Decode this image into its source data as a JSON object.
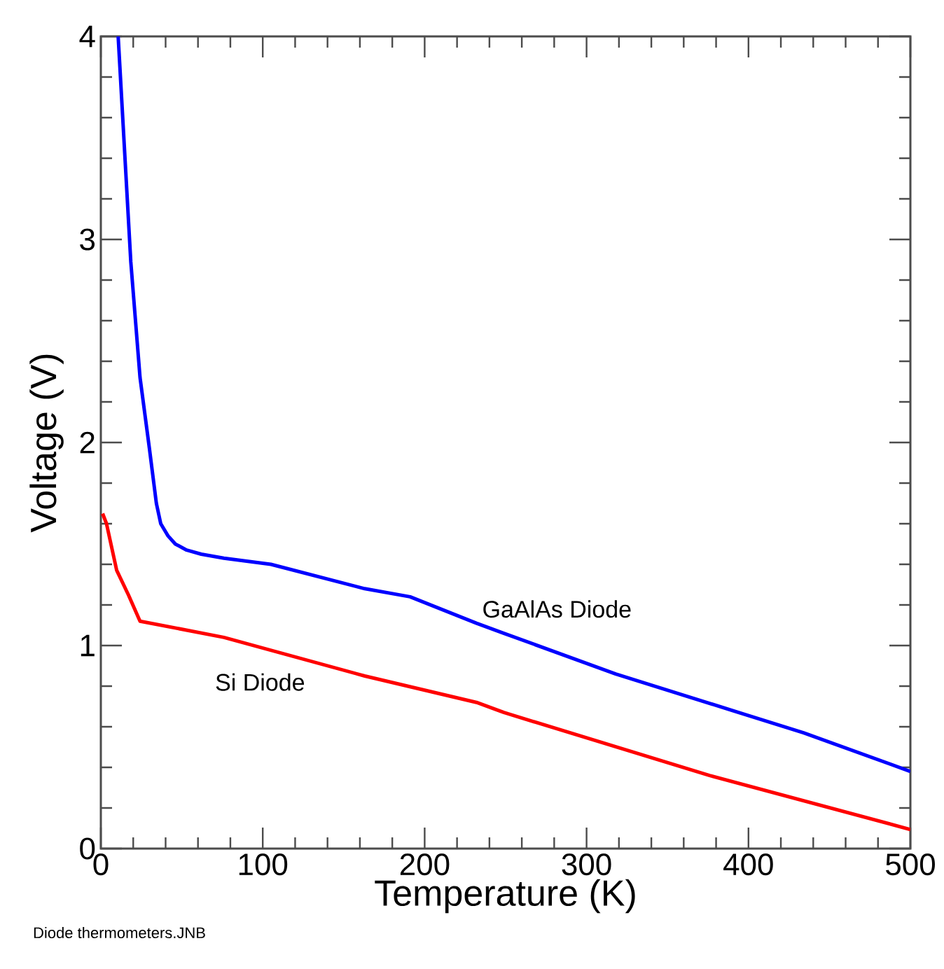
{
  "chart_data": {
    "type": "line",
    "xlabel": "Temperature (K)",
    "ylabel": "Voltage (V)",
    "xlim": [
      0,
      500
    ],
    "ylim": [
      0,
      4
    ],
    "xticks": [
      0,
      100,
      200,
      300,
      400,
      500
    ],
    "yticks": [
      0,
      1,
      2,
      3,
      4
    ],
    "grid": false,
    "legend": false,
    "marker": "none",
    "line_style": "solid",
    "series": [
      {
        "name": "GaAlAs Diode",
        "color": "#0000ff",
        "x": [
          10.7,
          18.5,
          24.2,
          30,
          34.3,
          37,
          41.5,
          46,
          53,
          62,
          76,
          105,
          163,
          191,
          232,
          249,
          318,
          434,
          500
        ],
        "values": [
          4,
          2.89,
          2.32,
          1.97,
          1.7,
          1.6,
          1.54,
          1.5,
          1.47,
          1.45,
          1.43,
          1.4,
          1.28,
          1.24,
          1.11,
          1.06,
          0.86,
          0.57,
          0.38
        ]
      },
      {
        "name": "Si Diode",
        "color": "#ff0000",
        "x": [
          1.1,
          3.5,
          9.8,
          17,
          24.2,
          76,
          163,
          232,
          249,
          376,
          500
        ],
        "values": [
          1.65,
          1.6,
          1.37,
          1.25,
          1.12,
          1.04,
          0.85,
          0.72,
          0.67,
          0.36,
          0.094
        ]
      }
    ],
    "annotations": [
      "Diode thermometers.JNB"
    ]
  }
}
